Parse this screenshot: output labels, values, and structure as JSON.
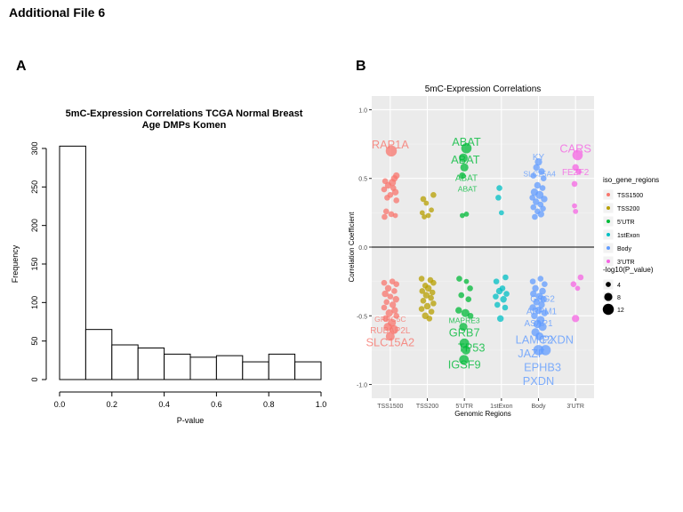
{
  "header": {
    "title": "Additional File 6"
  },
  "panels": {
    "a_label": "A",
    "b_label": "B"
  },
  "chart_data": [
    {
      "type": "bar",
      "title_line1": "5mC-Expression Correlations TCGA Normal Breast",
      "title_line2": "Age DMPs Komen",
      "xlabel": "P-value",
      "ylabel": "Frequency",
      "bin_edges": [
        0.0,
        0.1,
        0.2,
        0.3,
        0.4,
        0.5,
        0.6,
        0.7,
        0.8,
        0.9,
        1.0
      ],
      "values": [
        303,
        65,
        45,
        41,
        33,
        29,
        31,
        23,
        33,
        23
      ],
      "xlim": [
        0.0,
        1.0
      ],
      "ylim": [
        0,
        300
      ],
      "xticks": [
        0.0,
        0.2,
        0.4,
        0.6,
        0.8,
        1.0
      ],
      "xtick_labels": [
        "0.0",
        "0.2",
        "0.4",
        "0.6",
        "0.8",
        "1.0"
      ],
      "yticks": [
        0,
        50,
        100,
        150,
        200,
        250,
        300
      ],
      "ytick_labels": [
        "0",
        "50",
        "100",
        "150",
        "200",
        "250",
        "300"
      ]
    },
    {
      "type": "scatter",
      "title": "5mC-Expression Correlations",
      "xlabel": "Genomic Regions",
      "ylabel": "Correlation Coefficient",
      "categories": [
        "TSS1500",
        "TSS200",
        "5'UTR",
        "1stExon",
        "Body",
        "3'UTR"
      ],
      "ylim": [
        -1.1,
        1.1
      ],
      "yticks": [
        1.0,
        0.5,
        0.0,
        -0.5,
        -1.0
      ],
      "ytick_labels": [
        "1.0",
        "0.5",
        "0.0",
        "-0.5",
        "-1.0"
      ],
      "hline": 0.0,
      "colors": {
        "TSS1500": "#F8766D",
        "TSS200": "#B79F00",
        "5'UTR": "#00BA38",
        "1stExon": "#00BFC4",
        "Body": "#619CFF",
        "3'UTR": "#F564E3"
      },
      "legend": {
        "color_title": "iso_gene_regions",
        "color_entries": [
          "TSS1500",
          "TSS200",
          "5'UTR",
          "1stExon",
          "Body",
          "3'UTR"
        ],
        "size_title": "-log10(P_value)",
        "size_entries": [
          4,
          8,
          12
        ]
      },
      "points": [
        {
          "cat": 0,
          "j": 0.05,
          "y": 0.7,
          "s": 12
        },
        {
          "cat": 0,
          "j": 0.3,
          "y": 0.52,
          "s": 6
        },
        {
          "cat": 0,
          "j": 0.2,
          "y": 0.5,
          "s": 6
        },
        {
          "cat": 0,
          "j": -0.25,
          "y": 0.48,
          "s": 5
        },
        {
          "cat": 0,
          "j": 0.1,
          "y": 0.47,
          "s": 7
        },
        {
          "cat": 0,
          "j": -0.1,
          "y": 0.45,
          "s": 6
        },
        {
          "cat": 0,
          "j": 0.15,
          "y": 0.43,
          "s": 5
        },
        {
          "cat": 0,
          "j": -0.3,
          "y": 0.42,
          "s": 5
        },
        {
          "cat": 0,
          "j": 0.25,
          "y": 0.4,
          "s": 6
        },
        {
          "cat": 0,
          "j": 0.0,
          "y": 0.38,
          "s": 5
        },
        {
          "cat": 0,
          "j": -0.15,
          "y": 0.36,
          "s": 5
        },
        {
          "cat": 0,
          "j": 0.3,
          "y": 0.34,
          "s": 5
        },
        {
          "cat": 0,
          "j": -0.2,
          "y": 0.26,
          "s": 5
        },
        {
          "cat": 0,
          "j": 0.05,
          "y": 0.24,
          "s": 5
        },
        {
          "cat": 0,
          "j": 0.25,
          "y": 0.23,
          "s": 4
        },
        {
          "cat": 0,
          "j": -0.28,
          "y": 0.22,
          "s": 5
        },
        {
          "cat": 0,
          "j": -0.3,
          "y": -0.26,
          "s": 5
        },
        {
          "cat": 0,
          "j": 0.1,
          "y": -0.25,
          "s": 5
        },
        {
          "cat": 0,
          "j": 0.3,
          "y": -0.27,
          "s": 5
        },
        {
          "cat": 0,
          "j": -0.1,
          "y": -0.3,
          "s": 6
        },
        {
          "cat": 0,
          "j": 0.2,
          "y": -0.32,
          "s": 5
        },
        {
          "cat": 0,
          "j": -0.25,
          "y": -0.34,
          "s": 6
        },
        {
          "cat": 0,
          "j": 0.0,
          "y": -0.36,
          "s": 5
        },
        {
          "cat": 0,
          "j": 0.28,
          "y": -0.38,
          "s": 6
        },
        {
          "cat": 0,
          "j": -0.18,
          "y": -0.4,
          "s": 5
        },
        {
          "cat": 0,
          "j": 0.12,
          "y": -0.42,
          "s": 6
        },
        {
          "cat": 0,
          "j": -0.3,
          "y": -0.44,
          "s": 5
        },
        {
          "cat": 0,
          "j": 0.22,
          "y": -0.46,
          "s": 6
        },
        {
          "cat": 0,
          "j": -0.05,
          "y": -0.48,
          "s": 7
        },
        {
          "cat": 0,
          "j": 0.3,
          "y": -0.5,
          "s": 5
        },
        {
          "cat": 0,
          "j": -0.22,
          "y": -0.52,
          "s": 6
        },
        {
          "cat": 0,
          "j": 0.08,
          "y": -0.55,
          "s": 8
        },
        {
          "cat": 0,
          "j": -0.12,
          "y": -0.58,
          "s": 8
        },
        {
          "cat": 0,
          "j": 0.18,
          "y": -0.6,
          "s": 9
        },
        {
          "cat": 0,
          "j": 0.0,
          "y": -0.65,
          "s": 9
        },
        {
          "cat": 1,
          "j": -0.2,
          "y": 0.35,
          "s": 5
        },
        {
          "cat": 1,
          "j": 0.3,
          "y": 0.38,
          "s": 5
        },
        {
          "cat": 1,
          "j": -0.05,
          "y": 0.32,
          "s": 4
        },
        {
          "cat": 1,
          "j": 0.2,
          "y": 0.27,
          "s": 4
        },
        {
          "cat": 1,
          "j": -0.25,
          "y": 0.25,
          "s": 4
        },
        {
          "cat": 1,
          "j": 0.05,
          "y": 0.23,
          "s": 4
        },
        {
          "cat": 1,
          "j": -0.15,
          "y": 0.22,
          "s": 4
        },
        {
          "cat": 1,
          "j": -0.28,
          "y": -0.23,
          "s": 5
        },
        {
          "cat": 1,
          "j": 0.15,
          "y": -0.24,
          "s": 5
        },
        {
          "cat": 1,
          "j": 0.3,
          "y": -0.26,
          "s": 5
        },
        {
          "cat": 1,
          "j": -0.1,
          "y": -0.28,
          "s": 5
        },
        {
          "cat": 1,
          "j": 0.05,
          "y": -0.3,
          "s": 6
        },
        {
          "cat": 1,
          "j": -0.25,
          "y": -0.32,
          "s": 5
        },
        {
          "cat": 1,
          "j": 0.25,
          "y": -0.33,
          "s": 5
        },
        {
          "cat": 1,
          "j": -0.05,
          "y": -0.35,
          "s": 6
        },
        {
          "cat": 1,
          "j": 0.18,
          "y": -0.37,
          "s": 5
        },
        {
          "cat": 1,
          "j": -0.2,
          "y": -0.39,
          "s": 5
        },
        {
          "cat": 1,
          "j": 0.3,
          "y": -0.41,
          "s": 5
        },
        {
          "cat": 1,
          "j": 0.0,
          "y": -0.43,
          "s": 6
        },
        {
          "cat": 1,
          "j": -0.28,
          "y": -0.45,
          "s": 5
        },
        {
          "cat": 1,
          "j": 0.2,
          "y": -0.47,
          "s": 5
        },
        {
          "cat": 1,
          "j": -0.1,
          "y": -0.5,
          "s": 6
        },
        {
          "cat": 1,
          "j": 0.1,
          "y": -0.52,
          "s": 5
        },
        {
          "cat": 2,
          "j": 0.1,
          "y": 0.72,
          "s": 11
        },
        {
          "cat": 2,
          "j": -0.05,
          "y": 0.65,
          "s": 9
        },
        {
          "cat": 2,
          "j": 0.0,
          "y": 0.58,
          "s": 8
        },
        {
          "cat": 2,
          "j": -0.1,
          "y": 0.52,
          "s": 6
        },
        {
          "cat": 2,
          "j": -0.1,
          "y": 0.23,
          "s": 4
        },
        {
          "cat": 2,
          "j": 0.1,
          "y": 0.24,
          "s": 4
        },
        {
          "cat": 2,
          "j": -0.25,
          "y": -0.23,
          "s": 5
        },
        {
          "cat": 2,
          "j": 0.1,
          "y": -0.25,
          "s": 4
        },
        {
          "cat": 2,
          "j": 0.28,
          "y": -0.3,
          "s": 5
        },
        {
          "cat": 2,
          "j": -0.15,
          "y": -0.35,
          "s": 5
        },
        {
          "cat": 2,
          "j": 0.2,
          "y": -0.38,
          "s": 5
        },
        {
          "cat": 2,
          "j": -0.28,
          "y": -0.46,
          "s": 6
        },
        {
          "cat": 2,
          "j": 0.05,
          "y": -0.48,
          "s": 8
        },
        {
          "cat": 2,
          "j": 0.3,
          "y": -0.5,
          "s": 5
        },
        {
          "cat": 2,
          "j": -0.05,
          "y": -0.58,
          "s": 8
        },
        {
          "cat": 2,
          "j": 0.0,
          "y": -0.7,
          "s": 10
        },
        {
          "cat": 2,
          "j": 0.08,
          "y": -0.75,
          "s": 9
        },
        {
          "cat": 2,
          "j": -0.02,
          "y": -0.82,
          "s": 10
        },
        {
          "cat": 3,
          "j": -0.1,
          "y": 0.43,
          "s": 5
        },
        {
          "cat": 3,
          "j": -0.15,
          "y": 0.36,
          "s": 5
        },
        {
          "cat": 3,
          "j": 0.0,
          "y": 0.25,
          "s": 4
        },
        {
          "cat": 3,
          "j": -0.25,
          "y": -0.25,
          "s": 5
        },
        {
          "cat": 3,
          "j": 0.2,
          "y": -0.22,
          "s": 5
        },
        {
          "cat": 3,
          "j": 0.05,
          "y": -0.3,
          "s": 5
        },
        {
          "cat": 3,
          "j": -0.1,
          "y": -0.32,
          "s": 6
        },
        {
          "cat": 3,
          "j": 0.25,
          "y": -0.34,
          "s": 5
        },
        {
          "cat": 3,
          "j": -0.28,
          "y": -0.36,
          "s": 5
        },
        {
          "cat": 3,
          "j": 0.1,
          "y": -0.38,
          "s": 6
        },
        {
          "cat": 3,
          "j": -0.2,
          "y": -0.42,
          "s": 5
        },
        {
          "cat": 3,
          "j": 0.18,
          "y": -0.44,
          "s": 5
        },
        {
          "cat": 3,
          "j": -0.05,
          "y": -0.52,
          "s": 6
        },
        {
          "cat": 4,
          "j": 0.0,
          "y": 0.62,
          "s": 7
        },
        {
          "cat": 4,
          "j": -0.1,
          "y": 0.58,
          "s": 6
        },
        {
          "cat": 4,
          "j": 0.15,
          "y": 0.55,
          "s": 6
        },
        {
          "cat": 4,
          "j": -0.25,
          "y": 0.52,
          "s": 5
        },
        {
          "cat": 4,
          "j": 0.25,
          "y": 0.5,
          "s": 5
        },
        {
          "cat": 4,
          "j": -0.05,
          "y": 0.45,
          "s": 6
        },
        {
          "cat": 4,
          "j": 0.2,
          "y": 0.43,
          "s": 5
        },
        {
          "cat": 4,
          "j": -0.2,
          "y": 0.4,
          "s": 7
        },
        {
          "cat": 4,
          "j": 0.05,
          "y": 0.38,
          "s": 8
        },
        {
          "cat": 4,
          "j": -0.3,
          "y": 0.36,
          "s": 5
        },
        {
          "cat": 4,
          "j": 0.28,
          "y": 0.35,
          "s": 6
        },
        {
          "cat": 4,
          "j": -0.12,
          "y": 0.33,
          "s": 6
        },
        {
          "cat": 4,
          "j": 0.1,
          "y": 0.31,
          "s": 5
        },
        {
          "cat": 4,
          "j": -0.25,
          "y": 0.29,
          "s": 5
        },
        {
          "cat": 4,
          "j": 0.22,
          "y": 0.28,
          "s": 5
        },
        {
          "cat": 4,
          "j": -0.05,
          "y": 0.26,
          "s": 5
        },
        {
          "cat": 4,
          "j": 0.12,
          "y": 0.24,
          "s": 6
        },
        {
          "cat": 4,
          "j": -0.18,
          "y": 0.22,
          "s": 5
        },
        {
          "cat": 4,
          "j": -0.28,
          "y": -0.25,
          "s": 5
        },
        {
          "cat": 4,
          "j": 0.1,
          "y": -0.23,
          "s": 5
        },
        {
          "cat": 4,
          "j": 0.3,
          "y": -0.27,
          "s": 5
        },
        {
          "cat": 4,
          "j": -0.15,
          "y": -0.3,
          "s": 6
        },
        {
          "cat": 4,
          "j": 0.2,
          "y": -0.32,
          "s": 6
        },
        {
          "cat": 4,
          "j": -0.25,
          "y": -0.34,
          "s": 6
        },
        {
          "cat": 4,
          "j": 0.05,
          "y": -0.36,
          "s": 7
        },
        {
          "cat": 4,
          "j": 0.25,
          "y": -0.38,
          "s": 6
        },
        {
          "cat": 4,
          "j": -0.1,
          "y": -0.4,
          "s": 6
        },
        {
          "cat": 4,
          "j": 0.15,
          "y": -0.42,
          "s": 6
        },
        {
          "cat": 4,
          "j": -0.28,
          "y": -0.44,
          "s": 6
        },
        {
          "cat": 4,
          "j": 0.0,
          "y": -0.46,
          "s": 7
        },
        {
          "cat": 4,
          "j": 0.3,
          "y": -0.48,
          "s": 6
        },
        {
          "cat": 4,
          "j": -0.2,
          "y": -0.5,
          "s": 6
        },
        {
          "cat": 4,
          "j": 0.1,
          "y": -0.53,
          "s": 8
        },
        {
          "cat": 4,
          "j": -0.05,
          "y": -0.56,
          "s": 8
        },
        {
          "cat": 4,
          "j": 0.2,
          "y": -0.58,
          "s": 8
        },
        {
          "cat": 4,
          "j": -0.15,
          "y": -0.62,
          "s": 8
        },
        {
          "cat": 4,
          "j": 0.05,
          "y": -0.65,
          "s": 8
        },
        {
          "cat": 4,
          "j": 0.0,
          "y": -0.75,
          "s": 11
        },
        {
          "cat": 4,
          "j": 0.35,
          "y": -0.75,
          "s": 11
        },
        {
          "cat": 5,
          "j": 0.1,
          "y": 0.67,
          "s": 11
        },
        {
          "cat": 5,
          "j": 0.0,
          "y": 0.58,
          "s": 6
        },
        {
          "cat": 5,
          "j": 0.15,
          "y": 0.55,
          "s": 5
        },
        {
          "cat": 5,
          "j": -0.05,
          "y": 0.46,
          "s": 5
        },
        {
          "cat": 5,
          "j": -0.05,
          "y": 0.3,
          "s": 4
        },
        {
          "cat": 5,
          "j": 0.0,
          "y": 0.26,
          "s": 4
        },
        {
          "cat": 5,
          "j": 0.25,
          "y": -0.22,
          "s": 5
        },
        {
          "cat": 5,
          "j": -0.1,
          "y": -0.27,
          "s": 5
        },
        {
          "cat": 5,
          "j": 0.1,
          "y": -0.3,
          "s": 4
        },
        {
          "cat": 5,
          "j": 0.0,
          "y": -0.52,
          "s": 7
        }
      ],
      "annotations": [
        {
          "text": "RAP1A",
          "cat": 0,
          "dx": 0.0,
          "y": 0.74,
          "size": 9
        },
        {
          "text": "GRPC5C",
          "cat": 0,
          "dx": 0.0,
          "y": -0.53,
          "size": 6
        },
        {
          "text": "RUBAP2L",
          "cat": 0,
          "dx": 0.0,
          "y": -0.61,
          "size": 7
        },
        {
          "text": "SLC15A2",
          "cat": 0,
          "dx": 0.0,
          "y": -0.7,
          "size": 9
        },
        {
          "text": "ABAT",
          "cat": 2,
          "dx": 0.1,
          "y": 0.76,
          "size": 9
        },
        {
          "text": "ABAT",
          "cat": 2,
          "dx": 0.05,
          "y": 0.63,
          "size": 9
        },
        {
          "text": "ABAT",
          "cat": 2,
          "dx": 0.1,
          "y": 0.5,
          "size": 7
        },
        {
          "text": "ABAT",
          "cat": 2,
          "dx": 0.15,
          "y": 0.42,
          "size": 6
        },
        {
          "text": "MAPRE3",
          "cat": 2,
          "dx": 0.0,
          "y": -0.54,
          "size": 6
        },
        {
          "text": "GRB7",
          "cat": 2,
          "dx": 0.0,
          "y": -0.63,
          "size": 9
        },
        {
          "text": "TP53",
          "cat": 2,
          "dx": 0.35,
          "y": -0.74,
          "size": 9
        },
        {
          "text": "IGSF9",
          "cat": 2,
          "dx": 0.0,
          "y": -0.86,
          "size": 9
        },
        {
          "text": "KY",
          "cat": 4,
          "dx": 0.0,
          "y": 0.65,
          "size": 7
        },
        {
          "text": "SLC25A4",
          "cat": 4,
          "dx": 0.05,
          "y": 0.53,
          "size": 6
        },
        {
          "text": "GSG2",
          "cat": 4,
          "dx": 0.2,
          "y": -0.38,
          "size": 7
        },
        {
          "text": "ARPM1",
          "cat": 4,
          "dx": 0.15,
          "y": -0.47,
          "size": 7
        },
        {
          "text": "ASAP1",
          "cat": 4,
          "dx": 0.0,
          "y": -0.56,
          "size": 7
        },
        {
          "text": "LAMC2",
          "cat": 4,
          "dx": -0.2,
          "y": -0.68,
          "size": 9
        },
        {
          "text": "PXDN",
          "cat": 4,
          "dx": 0.95,
          "y": -0.68,
          "size": 9
        },
        {
          "text": "JAZF",
          "cat": 4,
          "dx": -0.35,
          "y": -0.78,
          "size": 9
        },
        {
          "text": "EPHB3",
          "cat": 4,
          "dx": 0.2,
          "y": -0.88,
          "size": 9
        },
        {
          "text": "PXDN",
          "cat": 4,
          "dx": 0.0,
          "y": -0.98,
          "size": 9
        },
        {
          "text": "CARS",
          "cat": 5,
          "dx": 0.0,
          "y": 0.71,
          "size": 9
        },
        {
          "text": "FEZF2",
          "cat": 5,
          "dx": 0.0,
          "y": 0.54,
          "size": 7
        }
      ]
    }
  ]
}
